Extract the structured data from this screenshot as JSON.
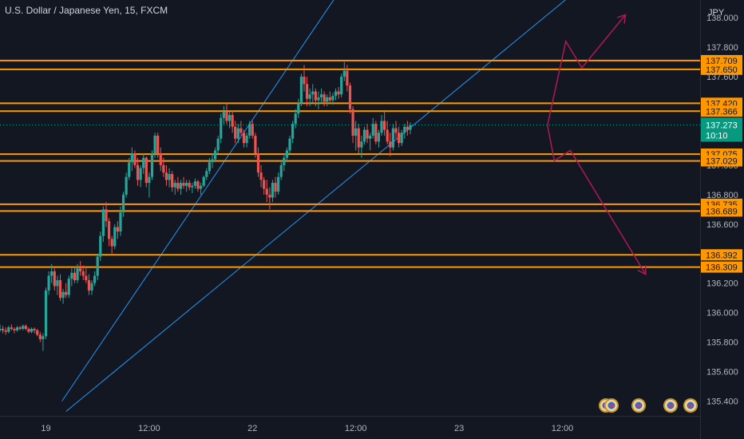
{
  "header": {
    "title": "U.S. Dollar / Japanese Yen, 15, FXCM"
  },
  "colors": {
    "background": "#131722",
    "bull": "#26a69a",
    "bear": "#ef5350",
    "level": "#ff9800",
    "channel": "#2196f3",
    "projection": "#b0185a",
    "current": "#089981",
    "text": "#b2b5be"
  },
  "chart_data": {
    "type": "candlestick",
    "instrument": "U.S. Dollar / Japanese Yen",
    "timeframe": "15",
    "source": "FXCM",
    "currency": "JPY",
    "y_range": [
      135.3,
      138.12
    ],
    "y_ticks": [
      "138.000",
      "137.800",
      "137.600",
      "137.400",
      "137.200",
      "137.000",
      "136.800",
      "136.600",
      "136.400",
      "136.200",
      "136.000",
      "135.800",
      "135.600",
      "135.400"
    ],
    "x_range": [
      -8,
      114
    ],
    "x_ticks": [
      {
        "label": "19",
        "t": 0
      },
      {
        "label": "12:00",
        "t": 18
      },
      {
        "label": "22",
        "t": 36
      },
      {
        "label": "12:00",
        "t": 54
      },
      {
        "label": "23",
        "t": 72
      },
      {
        "label": "12:00",
        "t": 90
      }
    ],
    "levels": [
      {
        "value": 137.709,
        "label": "137.709"
      },
      {
        "value": 137.65,
        "label": "137.650"
      },
      {
        "value": 137.42,
        "label": "137.420"
      },
      {
        "value": 137.366,
        "label": "137.366"
      },
      {
        "value": 137.075,
        "label": "137.075"
      },
      {
        "value": 137.029,
        "label": "137.029"
      },
      {
        "value": 136.735,
        "label": "136.735"
      },
      {
        "value": 136.689,
        "label": "136.689"
      },
      {
        "value": 136.392,
        "label": "136.392"
      },
      {
        "value": 136.309,
        "label": "136.309"
      }
    ],
    "current_price": {
      "value": 137.273,
      "label": "137.273",
      "countdown": "10:10"
    },
    "channel_lines": [
      {
        "points": [
          [
            2.8,
            135.4
          ],
          [
            55.0,
            138.4
          ]
        ]
      },
      {
        "points": [
          [
            3.5,
            135.33
          ],
          [
            93.0,
            138.2
          ]
        ]
      }
    ],
    "projections": [
      {
        "points": [
          [
            87.4,
            137.27
          ],
          [
            90.6,
            137.84
          ],
          [
            93.4,
            137.66
          ],
          [
            101.0,
            138.02
          ]
        ]
      },
      {
        "points": [
          [
            87.4,
            137.27
          ],
          [
            88.6,
            137.03
          ],
          [
            91.4,
            137.1
          ],
          [
            104.5,
            136.26
          ]
        ]
      }
    ],
    "candles": [
      [
        -8,
        135.88,
        135.92,
        135.87,
        135.89
      ],
      [
        -7.5,
        135.89,
        135.91,
        135.86,
        135.88
      ],
      [
        -7,
        135.88,
        135.9,
        135.85,
        135.87
      ],
      [
        -6.5,
        135.87,
        135.91,
        135.86,
        135.9
      ],
      [
        -6,
        135.9,
        135.92,
        135.88,
        135.89
      ],
      [
        -5.5,
        135.89,
        135.9,
        135.86,
        135.88
      ],
      [
        -5,
        135.88,
        135.91,
        135.87,
        135.9
      ],
      [
        -4.5,
        135.9,
        135.91,
        135.88,
        135.89
      ],
      [
        -4,
        135.89,
        135.92,
        135.88,
        135.91
      ],
      [
        -3.5,
        135.91,
        135.92,
        135.88,
        135.89
      ],
      [
        -3,
        135.89,
        135.9,
        135.86,
        135.87
      ],
      [
        -2.5,
        135.87,
        135.9,
        135.86,
        135.89
      ],
      [
        -2,
        135.89,
        135.9,
        135.86,
        135.88
      ],
      [
        -1.5,
        135.88,
        135.89,
        135.84,
        135.85
      ],
      [
        -1,
        135.85,
        135.87,
        135.8,
        135.82
      ],
      [
        -0.5,
        135.82,
        135.86,
        135.74,
        135.84
      ],
      [
        0,
        135.84,
        136.17,
        135.82,
        136.15
      ],
      [
        0.5,
        136.15,
        136.28,
        136.12,
        136.25
      ],
      [
        1,
        136.25,
        136.33,
        136.2,
        136.28
      ],
      [
        1.5,
        136.28,
        136.3,
        136.15,
        136.18
      ],
      [
        2,
        136.18,
        136.25,
        136.12,
        136.22
      ],
      [
        2.5,
        136.22,
        136.26,
        136.08,
        136.1
      ],
      [
        3,
        136.1,
        136.16,
        136.06,
        136.14
      ],
      [
        3.5,
        136.14,
        136.2,
        136.1,
        136.12
      ],
      [
        4,
        136.12,
        136.25,
        136.1,
        136.23
      ],
      [
        4.5,
        136.23,
        136.3,
        136.18,
        136.27
      ],
      [
        5,
        136.27,
        136.31,
        136.2,
        136.22
      ],
      [
        5.5,
        136.22,
        136.33,
        136.2,
        136.3
      ],
      [
        6,
        136.3,
        136.35,
        136.25,
        136.28
      ],
      [
        6.5,
        136.28,
        136.32,
        136.22,
        136.25
      ],
      [
        7,
        136.25,
        136.3,
        136.2,
        136.22
      ],
      [
        7.5,
        136.22,
        136.26,
        136.12,
        136.15
      ],
      [
        8,
        136.15,
        136.22,
        136.12,
        136.2
      ],
      [
        8.5,
        136.2,
        136.28,
        136.18,
        136.25
      ],
      [
        9,
        136.25,
        136.4,
        136.22,
        136.38
      ],
      [
        9.5,
        136.38,
        136.55,
        136.35,
        136.52
      ],
      [
        10,
        136.52,
        136.72,
        136.48,
        136.7
      ],
      [
        10.5,
        136.7,
        136.75,
        136.58,
        136.62
      ],
      [
        11,
        136.62,
        136.64,
        136.45,
        136.5
      ],
      [
        11.5,
        136.5,
        136.52,
        136.4,
        136.45
      ],
      [
        12,
        136.45,
        136.6,
        136.43,
        136.58
      ],
      [
        12.5,
        136.58,
        136.62,
        136.5,
        136.55
      ],
      [
        13,
        136.55,
        136.72,
        136.52,
        136.68
      ],
      [
        13.5,
        136.68,
        136.82,
        136.65,
        136.8
      ],
      [
        14,
        136.8,
        136.95,
        136.78,
        136.92
      ],
      [
        14.5,
        136.92,
        137.05,
        136.9,
        137.02
      ],
      [
        15,
        137.02,
        137.12,
        136.96,
        137.08
      ],
      [
        15.5,
        137.08,
        137.1,
        136.98,
        137.0
      ],
      [
        16,
        137.0,
        137.05,
        136.86,
        136.9
      ],
      [
        16.5,
        136.9,
        137.0,
        136.85,
        136.98
      ],
      [
        17,
        136.98,
        137.08,
        136.94,
        137.05
      ],
      [
        17.5,
        137.05,
        137.06,
        136.85,
        136.88
      ],
      [
        18,
        136.88,
        136.95,
        136.78,
        136.92
      ],
      [
        18.5,
        136.92,
        137.1,
        136.9,
        137.08
      ],
      [
        19,
        137.08,
        137.22,
        137.05,
        137.2
      ],
      [
        19.5,
        137.2,
        137.22,
        137.05,
        137.08
      ],
      [
        20,
        137.08,
        137.12,
        136.96,
        137.0
      ],
      [
        20.5,
        137.0,
        137.05,
        136.92,
        136.95
      ],
      [
        21,
        136.95,
        137.0,
        136.86,
        136.9
      ],
      [
        21.5,
        136.9,
        136.98,
        136.85,
        136.94
      ],
      [
        22,
        136.94,
        136.96,
        136.82,
        136.85
      ],
      [
        22.5,
        136.85,
        136.9,
        136.8,
        136.88
      ],
      [
        23,
        136.88,
        136.92,
        136.82,
        136.84
      ],
      [
        23.5,
        136.84,
        136.9,
        136.8,
        136.88
      ],
      [
        24,
        136.88,
        136.92,
        136.84,
        136.86
      ],
      [
        24.5,
        136.86,
        136.9,
        136.82,
        136.88
      ],
      [
        25,
        136.88,
        136.9,
        136.83,
        136.85
      ],
      [
        25.5,
        136.85,
        136.88,
        136.81,
        136.86
      ],
      [
        26,
        136.86,
        136.91,
        136.84,
        136.89
      ],
      [
        26.5,
        136.89,
        136.9,
        136.82,
        136.84
      ],
      [
        27,
        136.84,
        136.88,
        136.8,
        136.86
      ],
      [
        27.5,
        136.86,
        136.93,
        136.85,
        136.92
      ],
      [
        28,
        136.92,
        136.98,
        136.9,
        136.96
      ],
      [
        28.5,
        136.96,
        137.05,
        136.94,
        137.02
      ],
      [
        29,
        137.02,
        137.08,
        136.98,
        137.04
      ],
      [
        29.5,
        137.04,
        137.12,
        137.02,
        137.1
      ],
      [
        30,
        137.1,
        137.2,
        137.08,
        137.18
      ],
      [
        30.5,
        137.18,
        137.35,
        137.15,
        137.32
      ],
      [
        31,
        137.32,
        137.4,
        137.28,
        137.36
      ],
      [
        31.5,
        137.36,
        137.42,
        137.28,
        137.3
      ],
      [
        32,
        137.3,
        137.36,
        137.25,
        137.34
      ],
      [
        32.5,
        137.34,
        137.37,
        137.22,
        137.26
      ],
      [
        33,
        137.26,
        137.3,
        137.15,
        137.18
      ],
      [
        33.5,
        137.18,
        137.28,
        137.15,
        137.25
      ],
      [
        34,
        137.25,
        137.3,
        137.2,
        137.22
      ],
      [
        34.5,
        137.22,
        137.24,
        137.12,
        137.15
      ],
      [
        35,
        137.15,
        137.22,
        137.12,
        137.2
      ],
      [
        35.5,
        137.2,
        137.3,
        137.18,
        137.28
      ],
      [
        36,
        137.28,
        137.3,
        137.18,
        137.2
      ],
      [
        36.5,
        137.2,
        137.22,
        137.05,
        137.08
      ],
      [
        37,
        137.08,
        137.12,
        136.92,
        136.95
      ],
      [
        37.5,
        136.95,
        137.0,
        136.85,
        136.9
      ],
      [
        38,
        136.9,
        136.92,
        136.8,
        136.84
      ],
      [
        38.5,
        136.84,
        136.9,
        136.75,
        136.8
      ],
      [
        39,
        136.8,
        136.85,
        136.7,
        136.78
      ],
      [
        39.5,
        136.78,
        136.9,
        136.75,
        136.88
      ],
      [
        40,
        136.88,
        136.92,
        136.78,
        136.82
      ],
      [
        40.5,
        136.82,
        136.95,
        136.8,
        136.92
      ],
      [
        41,
        136.92,
        137.02,
        136.9,
        137.0
      ],
      [
        41.5,
        137.0,
        137.08,
        136.96,
        137.05
      ],
      [
        42,
        137.05,
        137.12,
        137.02,
        137.1
      ],
      [
        42.5,
        137.1,
        137.2,
        137.08,
        137.18
      ],
      [
        43,
        137.18,
        137.3,
        137.15,
        137.28
      ],
      [
        43.5,
        137.28,
        137.38,
        137.25,
        137.35
      ],
      [
        44,
        137.35,
        137.45,
        137.32,
        137.42
      ],
      [
        44.5,
        137.42,
        137.62,
        137.4,
        137.6
      ],
      [
        45,
        137.6,
        137.68,
        137.5,
        137.55
      ],
      [
        45.5,
        137.55,
        137.6,
        137.4,
        137.45
      ],
      [
        46,
        137.45,
        137.52,
        137.4,
        137.48
      ],
      [
        46.5,
        137.48,
        137.55,
        137.42,
        137.5
      ],
      [
        47,
        137.5,
        137.52,
        137.4,
        137.44
      ],
      [
        47.5,
        137.44,
        137.5,
        137.38,
        137.46
      ],
      [
        48,
        137.46,
        137.52,
        137.42,
        137.48
      ],
      [
        48.5,
        137.48,
        137.5,
        137.4,
        137.43
      ],
      [
        49,
        137.43,
        137.48,
        137.4,
        137.46
      ],
      [
        49.5,
        137.46,
        137.5,
        137.42,
        137.44
      ],
      [
        50,
        137.44,
        137.49,
        137.41,
        137.47
      ],
      [
        50.5,
        137.47,
        137.52,
        137.44,
        137.5
      ],
      [
        51,
        137.5,
        137.53,
        137.45,
        137.48
      ],
      [
        51.5,
        137.48,
        137.62,
        137.46,
        137.6
      ],
      [
        52,
        137.6,
        137.7,
        137.57,
        137.64
      ],
      [
        52.5,
        137.64,
        137.68,
        137.5,
        137.54
      ],
      [
        53,
        137.54,
        137.56,
        137.35,
        137.38
      ],
      [
        53.5,
        137.38,
        137.4,
        137.15,
        137.2
      ],
      [
        54,
        137.2,
        137.3,
        137.1,
        137.25
      ],
      [
        54.5,
        137.25,
        137.28,
        137.08,
        137.12
      ],
      [
        55,
        137.12,
        137.2,
        137.05,
        137.16
      ],
      [
        55.5,
        137.16,
        137.26,
        137.14,
        137.24
      ],
      [
        56,
        137.24,
        137.28,
        137.15,
        137.18
      ],
      [
        56.5,
        137.18,
        137.22,
        137.1,
        137.2
      ],
      [
        57,
        137.2,
        137.32,
        137.18,
        137.28
      ],
      [
        57.5,
        137.28,
        137.3,
        137.14,
        137.16
      ],
      [
        58,
        137.16,
        137.24,
        137.12,
        137.22
      ],
      [
        58.5,
        137.22,
        137.34,
        137.2,
        137.3
      ],
      [
        59,
        137.3,
        137.36,
        137.2,
        137.24
      ],
      [
        59.5,
        137.24,
        137.3,
        137.14,
        137.16
      ],
      [
        60,
        137.16,
        137.22,
        137.06,
        137.12
      ],
      [
        60.5,
        137.12,
        137.28,
        137.1,
        137.25
      ],
      [
        61,
        137.25,
        137.3,
        137.18,
        137.22
      ],
      [
        61.5,
        137.22,
        137.26,
        137.12,
        137.15
      ],
      [
        62,
        137.15,
        137.24,
        137.13,
        137.22
      ],
      [
        62.5,
        137.22,
        137.28,
        137.18,
        137.26
      ],
      [
        63,
        137.26,
        137.3,
        137.2,
        137.24
      ],
      [
        63.5,
        137.24,
        137.29,
        137.21,
        137.27
      ]
    ]
  }
}
